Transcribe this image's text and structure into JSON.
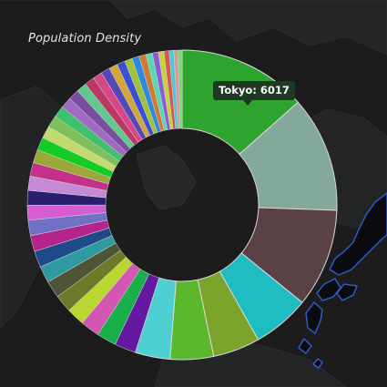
{
  "chart_data": {
    "type": "pie",
    "title": "Population Density",
    "tooltip": "Tokyo: 6017",
    "slices": [
      {
        "label": "Tokyo",
        "value": 6017,
        "color": "#2ea42e"
      },
      {
        "value": 5404,
        "color": "#84a89a"
      },
      {
        "value": 4600,
        "color": "#5a4145"
      },
      {
        "value": 2667,
        "color": "#1fbdc2"
      },
      {
        "value": 2188,
        "color": "#7aa42a"
      },
      {
        "value": 2023,
        "color": "#5bb82c"
      },
      {
        "value": 1630,
        "color": "#4ed0d3"
      },
      {
        "value": 990,
        "color": "#6418a0"
      },
      {
        "value": 920,
        "color": "#18b04a"
      },
      {
        "value": 890,
        "color": "#d256b2"
      },
      {
        "value": 850,
        "color": "#b9d631"
      },
      {
        "value": 820,
        "color": "#6e7a2a"
      },
      {
        "value": 800,
        "color": "#4e5436"
      },
      {
        "value": 780,
        "color": "#2e9aa0"
      },
      {
        "value": 760,
        "color": "#1e4a8a"
      },
      {
        "value": 740,
        "color": "#b5238c"
      },
      {
        "value": 720,
        "color": "#7070c4"
      },
      {
        "value": 700,
        "color": "#d55cd2"
      },
      {
        "value": 680,
        "color": "#2a1e6e"
      },
      {
        "value": 660,
        "color": "#c58ad6"
      },
      {
        "value": 640,
        "color": "#c2308a"
      },
      {
        "value": 620,
        "color": "#9aa838"
      },
      {
        "value": 600,
        "color": "#14cc24"
      },
      {
        "value": 580,
        "color": "#c3da6e"
      },
      {
        "value": 560,
        "color": "#7fbf5a"
      },
      {
        "value": 540,
        "color": "#3ec06e"
      },
      {
        "value": 520,
        "color": "#a06ac4"
      },
      {
        "value": 500,
        "color": "#7a4e9e"
      },
      {
        "value": 480,
        "color": "#60c890"
      },
      {
        "value": 460,
        "color": "#b83a64"
      },
      {
        "value": 440,
        "color": "#d8468a"
      },
      {
        "value": 420,
        "color": "#5248b8"
      },
      {
        "value": 400,
        "color": "#d3a63a"
      },
      {
        "value": 380,
        "color": "#3a4ed6"
      },
      {
        "value": 360,
        "color": "#9ec23a"
      },
      {
        "value": 340,
        "color": "#2e8adc"
      },
      {
        "value": 320,
        "color": "#d07a36"
      },
      {
        "value": 300,
        "color": "#5ad6b0"
      },
      {
        "value": 280,
        "color": "#8c5ad6"
      },
      {
        "value": 260,
        "color": "#c6d23a"
      },
      {
        "value": 240,
        "color": "#d6584e"
      },
      {
        "value": 220,
        "color": "#4ec6d6"
      },
      {
        "value": 200,
        "color": "#d69a9a"
      },
      {
        "value": 180,
        "color": "#7ad66e"
      }
    ]
  },
  "colors": {
    "background": "#1c1c1d",
    "map_land": "#232425",
    "map_border": "#2d2e30",
    "japan_outline": "#2f5fd2",
    "slice_stroke": "#d8d8d8",
    "tooltip_bg": "#1b3a21"
  }
}
